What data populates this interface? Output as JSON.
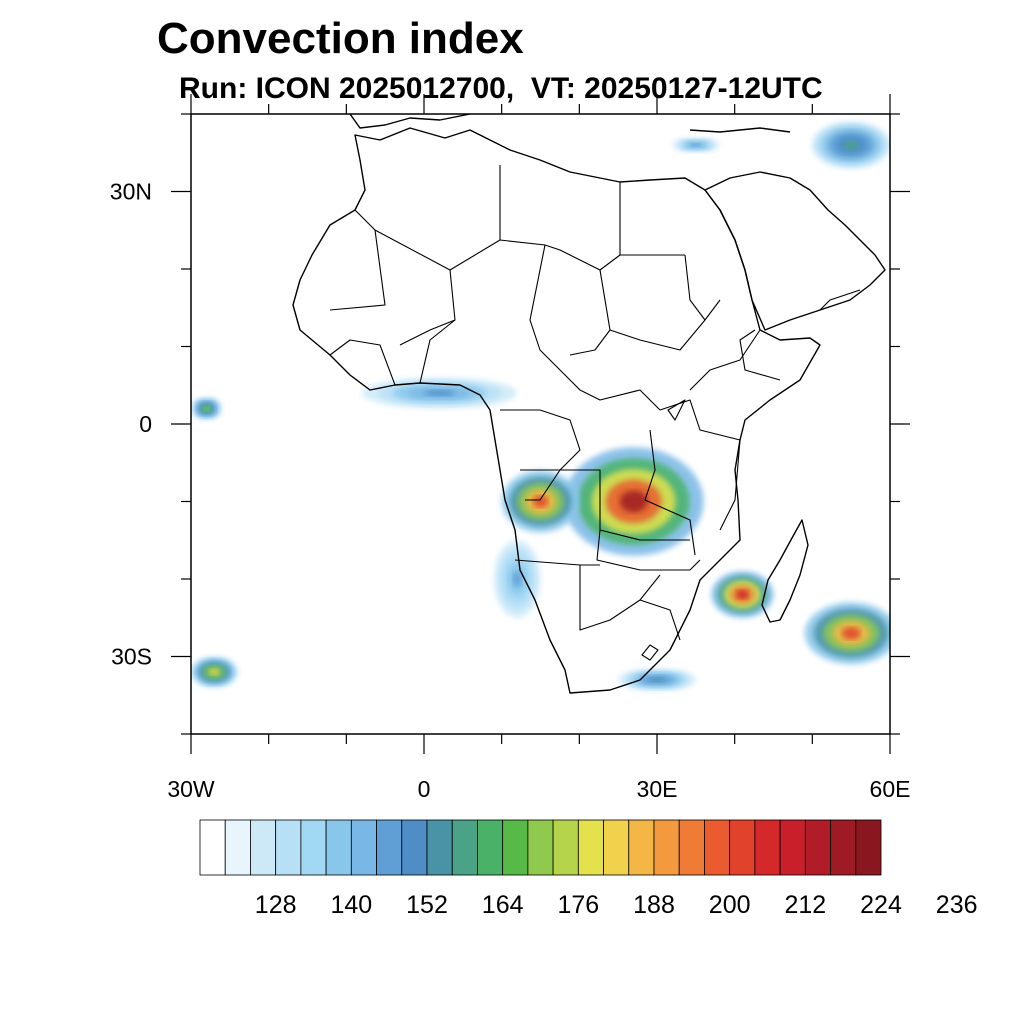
{
  "title": "Convection index",
  "subtitle": "Run: ICON 2025012700,  VT: 20250127-12UTC",
  "map": {
    "projection": "cylindrical-equidistant",
    "lon_range": [
      -30,
      60
    ],
    "lat_range": [
      -40,
      40
    ],
    "x_ticks": [
      {
        "lon": -30,
        "label": "30W"
      },
      {
        "lon": 0,
        "label": "0"
      },
      {
        "lon": 30,
        "label": "30E"
      },
      {
        "lon": 60,
        "label": "60E"
      }
    ],
    "y_ticks": [
      {
        "lat": 30,
        "label": "30N"
      },
      {
        "lat": 0,
        "label": "0"
      },
      {
        "lat": -30,
        "label": "30S"
      }
    ],
    "minor_tick_step_deg": 10
  },
  "colorbar": {
    "colors": [
      "#ffffff",
      "#e9f5fc",
      "#cde9f8",
      "#b7e0f6",
      "#a1d8f4",
      "#88c6ea",
      "#79b8e6",
      "#5f9fd5",
      "#4e8dc6",
      "#4a93a6",
      "#4aa386",
      "#49b268",
      "#57ba48",
      "#8fc94e",
      "#b5d44c",
      "#e3e24c",
      "#f2d24d",
      "#f4b745",
      "#f39a3e",
      "#ef7b35",
      "#ea5b2f",
      "#e1422c",
      "#d5282b",
      "#c81f2b",
      "#b21c29",
      "#9e1a24",
      "#8a1620"
    ],
    "labels": [
      "128",
      "140",
      "152",
      "164",
      "176",
      "188",
      "200",
      "212",
      "224",
      "236"
    ]
  },
  "field_regions": [
    {
      "name": "central-africa",
      "lon": 27,
      "lat": -10,
      "rx": 9,
      "ry": 7,
      "level": 0.95
    },
    {
      "name": "congo-west",
      "lon": 15,
      "lat": -10,
      "rx": 5,
      "ry": 4,
      "level": 0.8
    },
    {
      "name": "mozambique-channel",
      "lon": 41,
      "lat": -22,
      "rx": 4,
      "ry": 3,
      "level": 0.9
    },
    {
      "name": "madagascar-east",
      "lon": 55,
      "lat": -27,
      "rx": 6,
      "ry": 4,
      "level": 0.8
    },
    {
      "name": "atlantic-sw",
      "lon": -27,
      "lat": -32,
      "rx": 3,
      "ry": 2,
      "level": 0.6
    },
    {
      "name": "gulf-guinea",
      "lon": 2,
      "lat": 4,
      "rx": 10,
      "ry": 2,
      "level": 0.3
    },
    {
      "name": "atlantic-west-eq",
      "lon": -28,
      "lat": 2,
      "rx": 2,
      "ry": 1.5,
      "level": 0.5
    },
    {
      "name": "mediterranean-east",
      "lon": 35,
      "lat": 36,
      "rx": 3,
      "ry": 1,
      "level": 0.3
    },
    {
      "name": "iran",
      "lon": 55,
      "lat": 36,
      "rx": 5,
      "ry": 3,
      "level": 0.4
    },
    {
      "name": "south-africa-coast",
      "lon": 30,
      "lat": -33,
      "rx": 5,
      "ry": 1.5,
      "level": 0.35
    },
    {
      "name": "angola-coast",
      "lon": 12,
      "lat": -20,
      "rx": 3,
      "ry": 5,
      "level": 0.25
    }
  ]
}
